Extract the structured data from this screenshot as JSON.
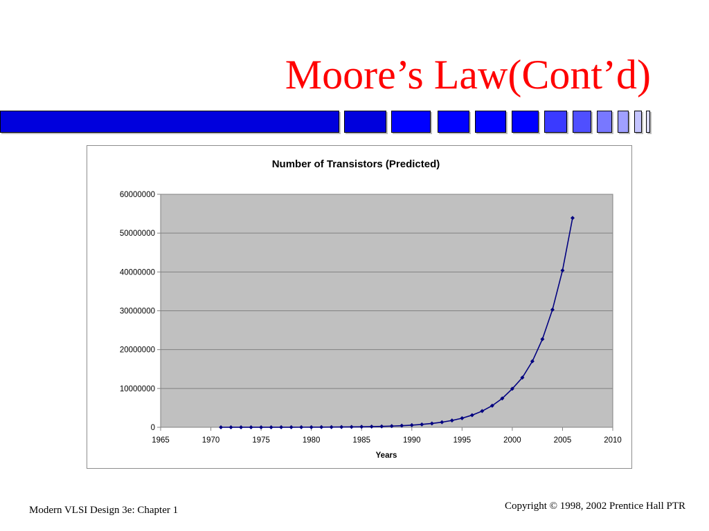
{
  "slide": {
    "title": "Moore’s Law(Cont’d)",
    "footer_left": "Modern VLSI Design 3e: Chapter 1",
    "footer_right": "Copyright © 1998, 2002 Prentice Hall PTR"
  },
  "colors": {
    "title": "#ff0000",
    "deco_blocks": [
      "#0000dd",
      "#0000dd",
      "#0000ff",
      "#0000ff",
      "#0000ff",
      "#0000ff",
      "#3a3aff",
      "#4f4fff",
      "#7878ff",
      "#a0a0ff",
      "#c4c4ff",
      "#dcdcff"
    ],
    "plot_background": "#c0c0c0",
    "series": "#000080"
  },
  "chart_data": {
    "type": "line",
    "title": "Number of Transistors (Predicted)",
    "xlabel": "Years",
    "ylabel": "",
    "xlim": [
      1965,
      2010
    ],
    "ylim": [
      0,
      60000000
    ],
    "x_ticks": [
      1965,
      1970,
      1975,
      1980,
      1985,
      1990,
      1995,
      2000,
      2005,
      2010
    ],
    "y_ticks": [
      0,
      10000000,
      20000000,
      30000000,
      40000000,
      50000000,
      60000000
    ],
    "grid": "horizontal",
    "markers": "diamond",
    "series": [
      {
        "x": [
          1971,
          1972,
          1973,
          1974,
          1975,
          1976,
          1977,
          1978,
          1979,
          1980,
          1981,
          1982,
          1983,
          1984,
          1985,
          1986,
          1987,
          1988,
          1989,
          1990,
          1991,
          1992,
          1993,
          1994,
          1995,
          1996,
          1997,
          1998,
          1999,
          2000,
          2001,
          2002,
          2003,
          2004,
          2005,
          2006
        ],
        "y": [
          2300,
          3000,
          4000,
          5400,
          7200,
          9700,
          12900,
          17200,
          23000,
          30700,
          41000,
          54700,
          73000,
          97500,
          130000,
          174000,
          232000,
          310000,
          414000,
          553000,
          738000,
          985000,
          1315000,
          1755000,
          2342000,
          3126000,
          4173000,
          5570000,
          7434000,
          9922000,
          12800000,
          17000000,
          22700000,
          30300000,
          40400000,
          53900000
        ]
      }
    ]
  }
}
